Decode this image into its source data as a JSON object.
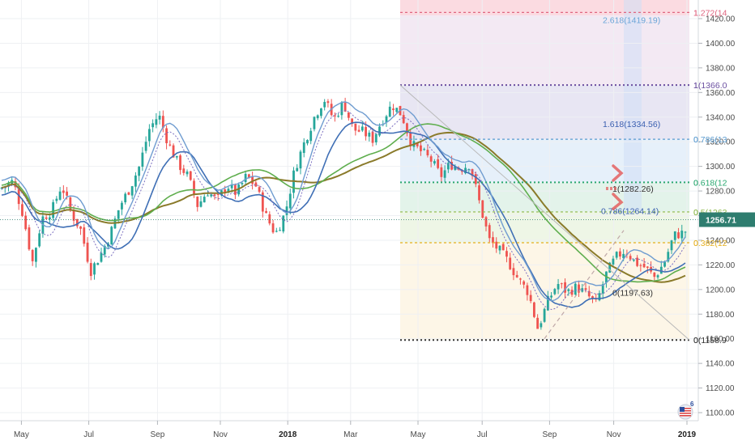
{
  "chart_data": {
    "type": "candlestick",
    "y_axis": {
      "min": 1095,
      "max": 1430,
      "ticks": [
        1420,
        1400,
        1380,
        1360,
        1340,
        1320,
        1300,
        1280,
        1260,
        1240,
        1220,
        1200,
        1180,
        1160,
        1140,
        1120,
        1100
      ],
      "tick_labels": [
        "1420.00",
        "1400.00",
        "1380.00",
        "1360.00",
        "1340.00",
        "1320.00",
        "1300.00",
        "1280.00",
        "1260.00",
        "1240.00",
        "1220.00",
        "1200.00",
        "1180.00",
        "1160.00",
        "1140.00",
        "1120.00",
        "1100.00"
      ]
    },
    "x_axis": {
      "labels": [
        {
          "text": "May",
          "t": 0.033
        },
        {
          "text": "Jul",
          "t": 0.137
        },
        {
          "text": "Sep",
          "t": 0.243
        },
        {
          "text": "Nov",
          "t": 0.34
        },
        {
          "text": "2018",
          "t": 0.444,
          "bold": true
        },
        {
          "text": "Mar",
          "t": 0.541
        },
        {
          "text": "May",
          "t": 0.645
        },
        {
          "text": "Jul",
          "t": 0.744
        },
        {
          "text": "Sep",
          "t": 0.848
        },
        {
          "text": "Nov",
          "t": 0.947
        },
        {
          "text": "2019",
          "t": 1.06,
          "bold": true
        }
      ]
    },
    "last_price": {
      "value": 1256.71,
      "label": "1256.71",
      "color": "#2e7d6f"
    },
    "price_path": [
      [
        0.0,
        1282
      ],
      [
        0.02,
        1288
      ],
      [
        0.035,
        1262
      ],
      [
        0.05,
        1222
      ],
      [
        0.065,
        1258
      ],
      [
        0.08,
        1264
      ],
      [
        0.095,
        1285
      ],
      [
        0.11,
        1262
      ],
      [
        0.125,
        1248
      ],
      [
        0.14,
        1215
      ],
      [
        0.155,
        1228
      ],
      [
        0.17,
        1245
      ],
      [
        0.185,
        1268
      ],
      [
        0.2,
        1282
      ],
      [
        0.215,
        1300
      ],
      [
        0.23,
        1330
      ],
      [
        0.245,
        1342
      ],
      [
        0.26,
        1318
      ],
      [
        0.275,
        1302
      ],
      [
        0.29,
        1292
      ],
      [
        0.305,
        1268
      ],
      [
        0.32,
        1280
      ],
      [
        0.335,
        1272
      ],
      [
        0.35,
        1285
      ],
      [
        0.365,
        1278
      ],
      [
        0.38,
        1292
      ],
      [
        0.395,
        1284
      ],
      [
        0.41,
        1260
      ],
      [
        0.425,
        1245
      ],
      [
        0.44,
        1262
      ],
      [
        0.455,
        1298
      ],
      [
        0.47,
        1320
      ],
      [
        0.485,
        1340
      ],
      [
        0.5,
        1355
      ],
      [
        0.515,
        1338
      ],
      [
        0.53,
        1352
      ],
      [
        0.545,
        1330
      ],
      [
        0.56,
        1328
      ],
      [
        0.575,
        1322
      ],
      [
        0.59,
        1338
      ],
      [
        0.605,
        1350
      ],
      [
        0.62,
        1342
      ],
      [
        0.635,
        1318
      ],
      [
        0.65,
        1312
      ],
      [
        0.665,
        1305
      ],
      [
        0.68,
        1292
      ],
      [
        0.695,
        1302
      ],
      [
        0.71,
        1298
      ],
      [
        0.725,
        1302
      ],
      [
        0.74,
        1270
      ],
      [
        0.755,
        1240
      ],
      [
        0.77,
        1232
      ],
      [
        0.785,
        1222
      ],
      [
        0.8,
        1208
      ],
      [
        0.815,
        1198
      ],
      [
        0.83,
        1168
      ],
      [
        0.845,
        1190
      ],
      [
        0.86,
        1205
      ],
      [
        0.875,
        1198
      ],
      [
        0.89,
        1202
      ],
      [
        0.905,
        1196
      ],
      [
        0.92,
        1188
      ],
      [
        0.935,
        1212
      ],
      [
        0.95,
        1226
      ],
      [
        0.965,
        1232
      ],
      [
        0.98,
        1222
      ],
      [
        0.995,
        1218
      ],
      [
        1.01,
        1210
      ],
      [
        1.025,
        1222
      ],
      [
        1.04,
        1244
      ],
      [
        1.055,
        1246
      ],
      [
        1.07,
        1255
      ]
    ],
    "fib_levels": [
      {
        "label": "1.272(14",
        "value": 1425,
        "color": "#e06680",
        "lineDash": true
      },
      {
        "label": "1(1366.0",
        "value": 1366,
        "color": "#6b4fa0",
        "lineDash": true,
        "dotted": true
      },
      {
        "label": "0.786(13",
        "value": 1322,
        "color": "#5a9bd0",
        "lineDash": true
      },
      {
        "label": "0.618(12",
        "value": 1287,
        "color": "#2aa870",
        "lineDash": true,
        "dotted": true
      },
      {
        "label": "0.5(1263",
        "value": 1263,
        "color": "#8db84a",
        "lineDash": true
      },
      {
        "label": "0.382(12",
        "value": 1238,
        "color": "#e6b020",
        "lineDash": true
      },
      {
        "label": "0(1158.9",
        "value": 1159,
        "color": "#333333",
        "lineDash": true,
        "dotted": true
      }
    ],
    "inner_labels": [
      {
        "text": "2.618(1419.19)",
        "value": 1419,
        "color": "#6aa5d8"
      },
      {
        "text": "1.618(1334.56)",
        "value": 1334.5,
        "color": "#3a5fb0"
      },
      {
        "text": "1(1282.26)",
        "value": 1282,
        "color": "#333333"
      },
      {
        "text": "0.786(1264.14)",
        "value": 1264,
        "color": "#3a5fb0"
      },
      {
        "text": "0(1197.63)",
        "value": 1197.5,
        "color": "#333333"
      }
    ],
    "colors": {
      "up": "#26a69a",
      "down": "#ef5350",
      "ma_olive": "#8a7a2a",
      "ma_green": "#5fae4e",
      "ma_blue": "#3f6fb5",
      "ma_lightblue": "#6f9cd0"
    }
  },
  "axis_badge": "6"
}
